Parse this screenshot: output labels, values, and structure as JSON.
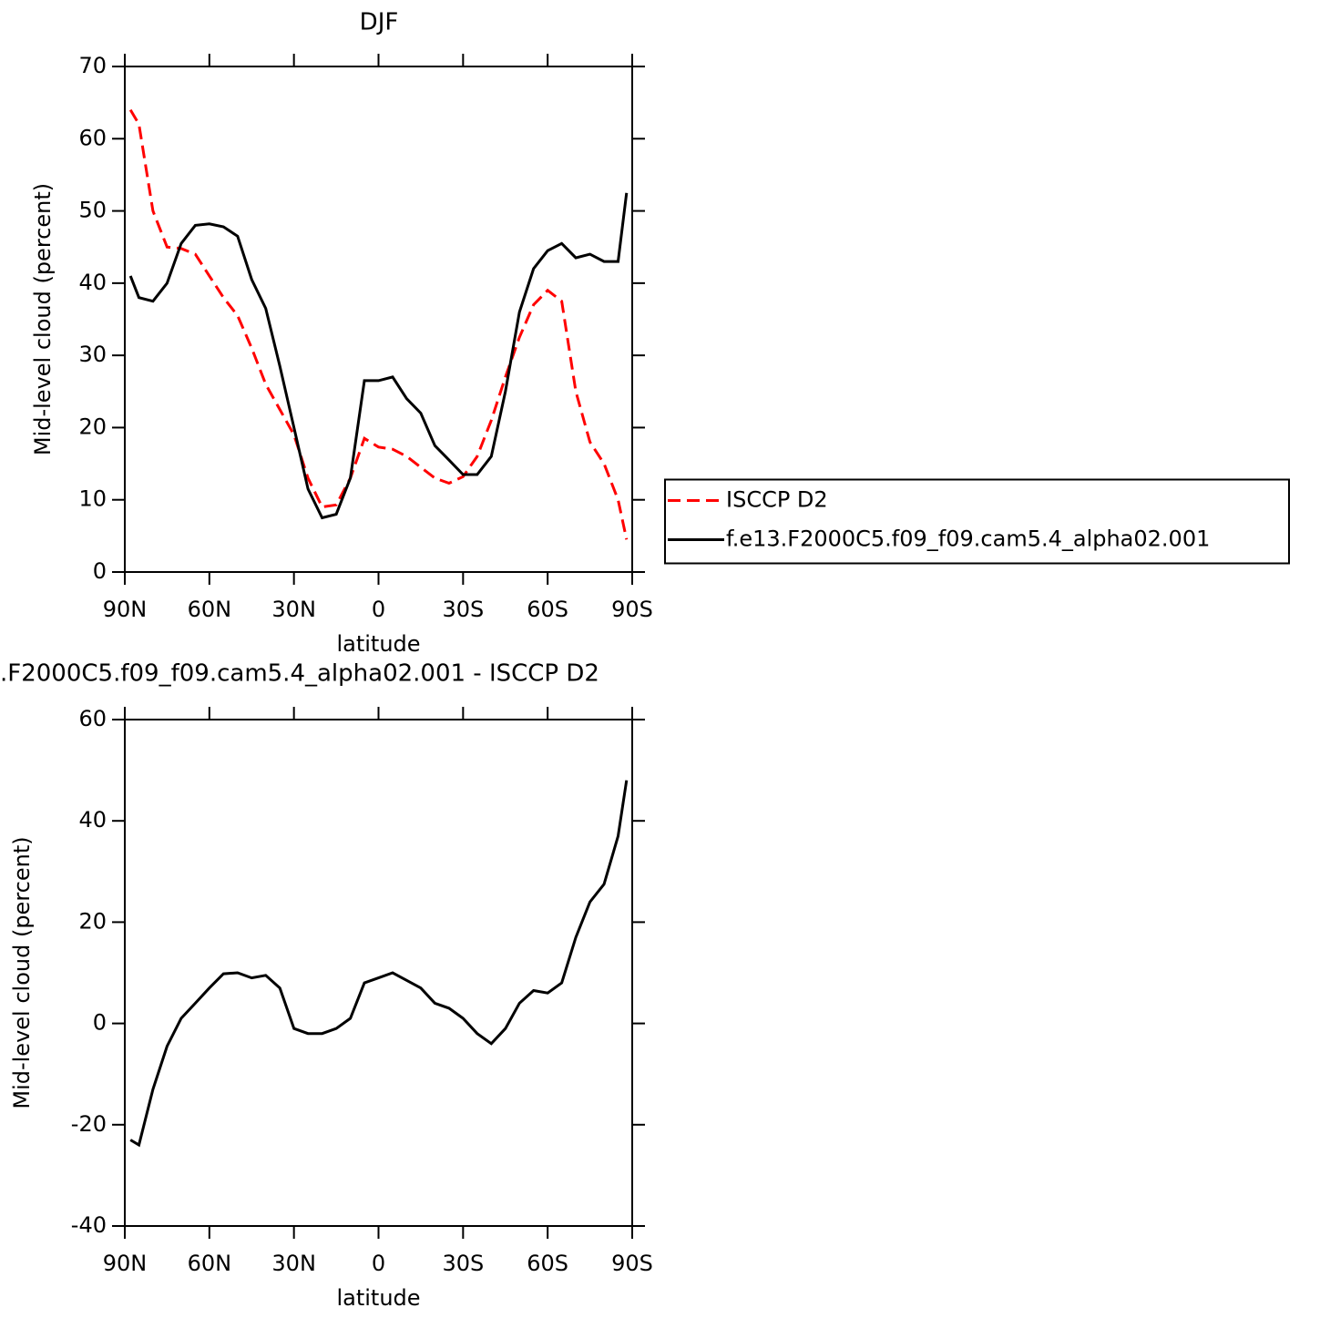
{
  "chart_data": [
    {
      "type": "line",
      "title": "DJF",
      "xlabel": "latitude",
      "ylabel": "Mid-level cloud (percent)",
      "x": [
        88,
        85,
        80,
        75,
        70,
        65,
        60,
        55,
        50,
        45,
        40,
        35,
        30,
        25,
        20,
        15,
        10,
        5,
        0,
        -5,
        -10,
        -15,
        -20,
        -25,
        -30,
        -35,
        -40,
        -45,
        -50,
        -55,
        -60,
        -65,
        -70,
        -75,
        -80,
        -85,
        -88
      ],
      "series": [
        {
          "name": "ISCCP D2",
          "color": "#ff0000",
          "linestyle": "dashed",
          "values": [
            64,
            62,
            50,
            45,
            44.8,
            44,
            41,
            38,
            35.5,
            31,
            26,
            22.5,
            19,
            13,
            9,
            9.3,
            13,
            18.5,
            17.3,
            17,
            16,
            14.5,
            13,
            12.3,
            13.2,
            16,
            21,
            27,
            32.5,
            37,
            39,
            37.5,
            25,
            18,
            15,
            10,
            4.5
          ]
        },
        {
          "name": "f.e13.F2000C5.f09_f09.cam5.4_alpha02.001",
          "color": "#000000",
          "linestyle": "solid",
          "values": [
            41,
            38,
            37.5,
            40,
            45.5,
            48,
            48.2,
            47.8,
            46.5,
            40.5,
            36.5,
            28.5,
            20,
            11.5,
            7.5,
            8,
            13,
            26.5,
            26.5,
            27,
            24,
            22,
            17.5,
            15.5,
            13.5,
            13.5,
            16,
            25,
            36,
            42,
            44.5,
            45.5,
            43.5,
            44,
            43,
            43,
            52.5
          ]
        }
      ],
      "xlim": [
        90,
        -90
      ],
      "xticks": [
        {
          "value": 90,
          "label": "90N"
        },
        {
          "value": 60,
          "label": "60N"
        },
        {
          "value": 30,
          "label": "30N"
        },
        0,
        {
          "value": -30,
          "label": "30S"
        },
        {
          "value": -60,
          "label": "60S"
        },
        {
          "value": -90,
          "label": "90S"
        }
      ],
      "ylim": [
        0,
        70
      ],
      "yticks": [
        0,
        10,
        20,
        30,
        40,
        50,
        60,
        70
      ],
      "legend": "right"
    },
    {
      "type": "line",
      "title": ".F2000C5.f09_f09.cam5.4_alpha02.001 - ISCCP D2",
      "xlabel": "latitude",
      "ylabel": "Mid-level cloud (percent)",
      "x": [
        88,
        85,
        80,
        75,
        70,
        65,
        60,
        55,
        50,
        45,
        40,
        35,
        30,
        25,
        20,
        15,
        10,
        5,
        0,
        -5,
        -10,
        -15,
        -20,
        -25,
        -30,
        -35,
        -40,
        -45,
        -50,
        -55,
        -60,
        -65,
        -70,
        -75,
        -80,
        -85,
        -88
      ],
      "series": [
        {
          "color": "#000000",
          "linestyle": "solid",
          "values": [
            -23,
            -24,
            -13,
            -4.5,
            1,
            4,
            7,
            9.8,
            10,
            9,
            9.5,
            7,
            -1,
            -2,
            -2,
            -1,
            1,
            8,
            9,
            10,
            8.5,
            7,
            4,
            3,
            1,
            -2,
            -4,
            -1,
            4,
            6.5,
            6,
            8,
            17,
            24,
            27.5,
            37,
            48
          ]
        }
      ],
      "xlim": [
        90,
        -90
      ],
      "xticks": [
        {
          "value": 90,
          "label": "90N"
        },
        {
          "value": 60,
          "label": "60N"
        },
        {
          "value": 30,
          "label": "30N"
        },
        0,
        {
          "value": -30,
          "label": "30S"
        },
        {
          "value": -60,
          "label": "60S"
        },
        {
          "value": -90,
          "label": "90S"
        }
      ],
      "ylim": [
        -40,
        60
      ],
      "yticks": [
        -40,
        -20,
        0,
        20,
        40,
        60
      ]
    }
  ]
}
